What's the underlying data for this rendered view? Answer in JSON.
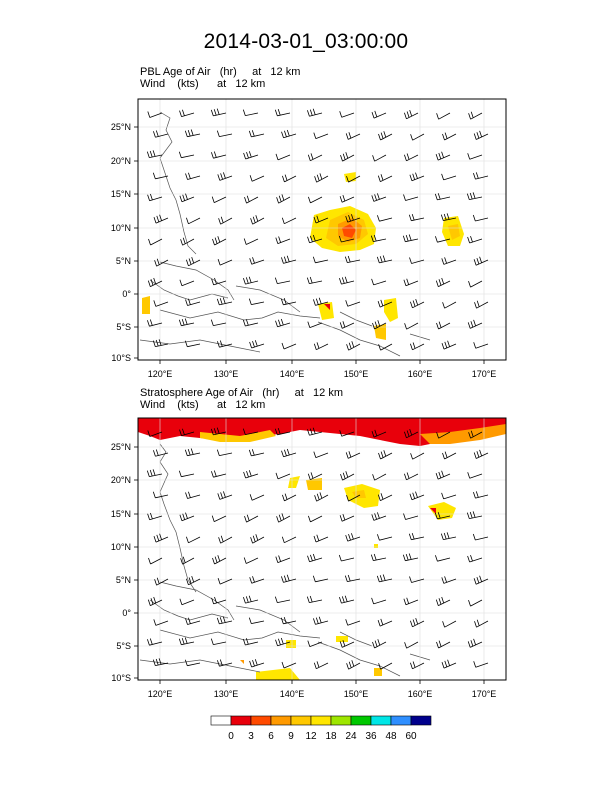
{
  "title": "2014-03-01_03:00:00",
  "panels": [
    {
      "id": "pbl",
      "line1": "PBL Age of Air   (hr)     at   12 km",
      "line2": "Wind    (kts)      at   12 km"
    },
    {
      "id": "strat",
      "line1": "Stratosphere Age of Air   (hr)     at   12 km",
      "line2": "Wind    (kts)      at   12 km"
    }
  ],
  "map": {
    "lon_range": [
      115,
      173
    ],
    "lat_range": [
      -10,
      29
    ],
    "lon_ticks": [
      "120°E",
      "130°E",
      "140°E",
      "150°E",
      "160°E",
      "170°E"
    ],
    "lat_ticks": [
      "25°N",
      "20°N",
      "15°N",
      "10°N",
      "5°N",
      "0°",
      "5°S",
      "10°S"
    ]
  },
  "colorbar": {
    "labels": [
      "0",
      "3",
      "6",
      "9",
      "12",
      "18",
      "24",
      "36",
      "48",
      "60"
    ],
    "colors": [
      "#ffffff",
      "#e8000b",
      "#ff4a00",
      "#ff9a00",
      "#ffc800",
      "#ffe600",
      "#9ee600",
      "#00c800",
      "#00e6e6",
      "#2f8fff",
      "#00008c"
    ]
  }
}
